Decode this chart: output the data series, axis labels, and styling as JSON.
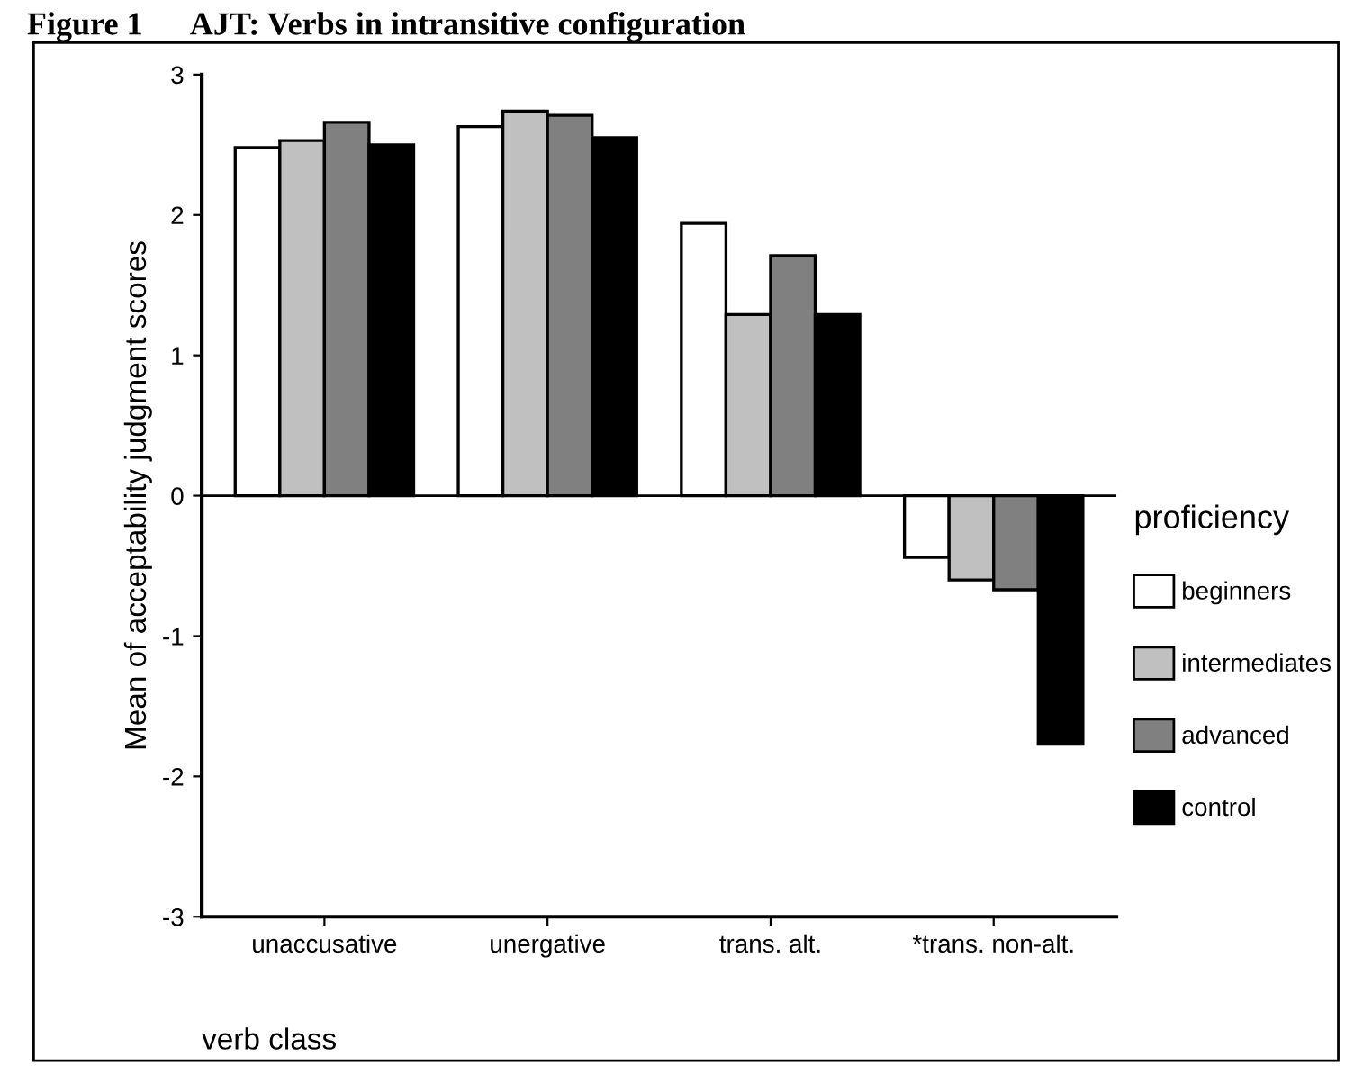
{
  "chart_data": {
    "type": "bar",
    "title": "Figure 1      AJT: Verbs in intransitive configuration",
    "xlabel": "verb class",
    "ylabel": "Mean of acceptability judgment scores",
    "legend_title": "proficiency",
    "categories": [
      "unaccusative",
      "unergative",
      "trans. alt.",
      "*trans. non-alt."
    ],
    "series": [
      {
        "name": "beginners",
        "color": "#ffffff",
        "values": [
          2.48,
          2.63,
          1.94,
          -0.44
        ]
      },
      {
        "name": "intermediates",
        "color": "#c0c0c0",
        "values": [
          2.53,
          2.74,
          1.29,
          -0.6
        ]
      },
      {
        "name": "advanced",
        "color": "#808080",
        "values": [
          2.66,
          2.71,
          1.71,
          -0.67
        ]
      },
      {
        "name": "control",
        "color": "#000000",
        "values": [
          2.5,
          2.55,
          1.29,
          -1.77
        ]
      }
    ],
    "ylim": [
      -3,
      3
    ],
    "yticks": [
      -3,
      -2,
      -1,
      0,
      1,
      2,
      3
    ],
    "ref_lines": [
      {
        "axis": "y",
        "value": 0,
        "color": "#000000"
      }
    ],
    "grid": false,
    "legend": "right"
  }
}
